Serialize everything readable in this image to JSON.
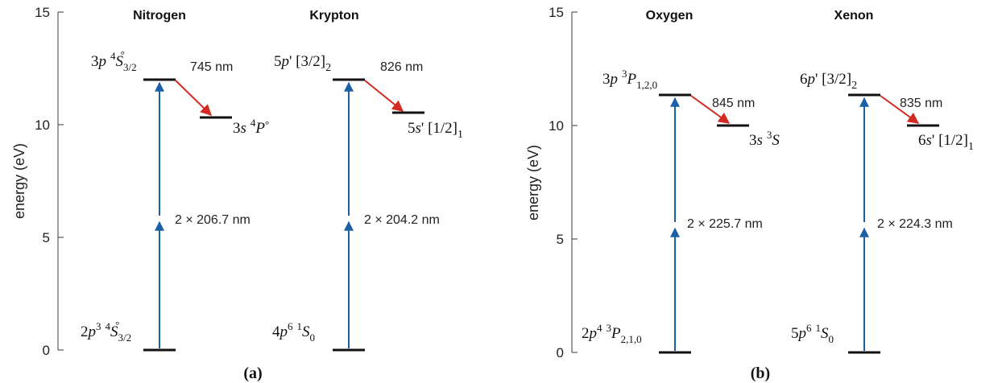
{
  "panels": [
    {
      "panel_label": "(a)",
      "ylabel": "energy (eV)",
      "ticks": [
        "0",
        "5",
        "10",
        "15"
      ],
      "atoms": [
        {
          "element": "Nitrogen",
          "ground_state": {
            "prefix": "2",
            "p": "p",
            "sup1": "3",
            "sup2": "4",
            "term": "S",
            "sub": "3/2",
            "suffix": "°"
          },
          "upper_state": {
            "prefix": "3",
            "p": "p",
            "sup": "4",
            "term": "S",
            "sub": "3/2",
            "suffix": "°"
          },
          "final_state": {
            "prefix": "3",
            "s": "s",
            "sup": "4",
            "term": "P",
            "suffix": "°"
          },
          "two_photon_label": "2 × 206.7 nm",
          "fluorescence_label": "745 nm",
          "energies_eV": {
            "ground": 0,
            "upper": 12.0,
            "final": 10.3
          }
        },
        {
          "element": "Krypton",
          "ground_state": {
            "prefix": "4",
            "p": "p",
            "sup1": "6",
            "sup2": "1",
            "term": "S",
            "sub": "0"
          },
          "upper_state": {
            "prefix": "5",
            "p": "p",
            "mid": "' [3/2]",
            "sub": "2"
          },
          "final_state": {
            "prefix": "5",
            "s": "s",
            "mid": "' [1/2]",
            "sub": "1"
          },
          "two_photon_label": "2 × 204.2 nm",
          "fluorescence_label": "826 nm",
          "energies_eV": {
            "ground": 0,
            "upper": 12.0,
            "final": 10.5
          }
        }
      ]
    },
    {
      "panel_label": "(b)",
      "ylabel": "energy (eV)",
      "ticks": [
        "0",
        "5",
        "10",
        "15"
      ],
      "atoms": [
        {
          "element": "Oxygen",
          "ground_state": {
            "prefix": "2",
            "p": "p",
            "sup1": "4",
            "sup2": "3",
            "term": "P",
            "sub": "2,1,0"
          },
          "upper_state": {
            "prefix": "3",
            "p": "p",
            "sup": "3",
            "term": "P",
            "sub": "1,2,0"
          },
          "final_state": {
            "prefix": "3",
            "s": "s",
            "sup": "3",
            "term": "S"
          },
          "two_photon_label": "2 × 225.7 nm",
          "fluorescence_label": "845 nm",
          "energies_eV": {
            "ground": 0,
            "upper": 11.0,
            "final": 9.5
          }
        },
        {
          "element": "Xenon",
          "ground_state": {
            "prefix": "5",
            "p": "p",
            "sup1": "6",
            "sup2": "1",
            "term": "S",
            "sub": "0"
          },
          "upper_state": {
            "prefix": "6",
            "p": "p",
            "mid": "' [3/2]",
            "sub": "2"
          },
          "final_state": {
            "prefix": "6",
            "s": "s",
            "mid": "' [1/2]",
            "sub": "1"
          },
          "two_photon_label": "2 × 224.3 nm",
          "fluorescence_label": "835 nm",
          "energies_eV": {
            "ground": 0,
            "upper": 11.0,
            "final": 9.6
          }
        }
      ]
    }
  ],
  "colors": {
    "excitation_arrow": "#1b5fa8",
    "fluorescence_arrow": "#d42a23",
    "level": "#111111"
  }
}
